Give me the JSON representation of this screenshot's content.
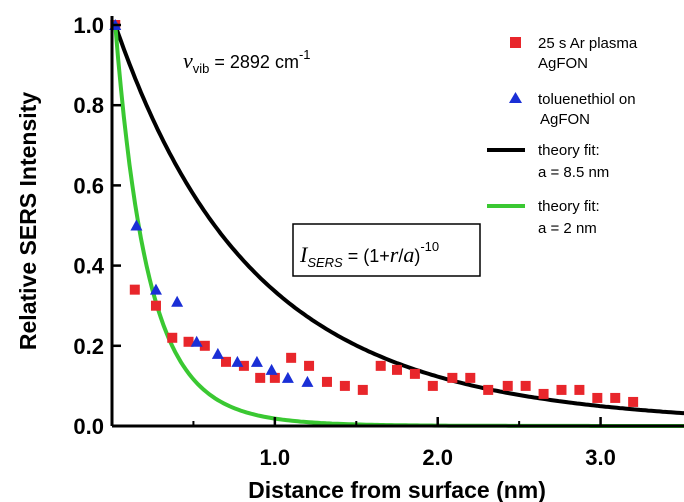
{
  "chart_data": {
    "type": "scatter",
    "xlabel": "Distance from surface (nm)",
    "ylabel": "Relative SERS Intensity",
    "xlim": [
      0.0,
      3.5
    ],
    "ylim": [
      0.0,
      1.0
    ],
    "x_ticks": [
      {
        "value": 1.0,
        "label": "1.0"
      },
      {
        "value": 2.0,
        "label": "2.0"
      },
      {
        "value": 3.0,
        "label": "3.0"
      }
    ],
    "y_ticks": [
      {
        "value": 0.0,
        "label": "0.0"
      },
      {
        "value": 0.2,
        "label": "0.2"
      },
      {
        "value": 0.4,
        "label": "0.4"
      },
      {
        "value": 0.6,
        "label": "0.6"
      },
      {
        "value": 0.8,
        "label": "0.8"
      },
      {
        "value": 1.0,
        "label": "1.0"
      }
    ],
    "grid": false,
    "legend_position": "top-right",
    "annotation_vib": {
      "symbol": "ν",
      "sub": "vib",
      "text": " = 2892 cm",
      "sup": "-1"
    },
    "annotation_eq": {
      "symbol": "I",
      "sub": "SERS",
      "text": " = (1+",
      "r": "r",
      "slash": "/",
      "a": "a",
      "close": ")",
      "sup": "-10"
    },
    "series": [
      {
        "name_line1": "25 s Ar plasma",
        "name_line2": "AgFON",
        "kind": "scatter",
        "marker": "square",
        "color": "#e8262b",
        "x": [
          0.02,
          0.14,
          0.27,
          0.37,
          0.47,
          0.57,
          0.7,
          0.81,
          0.91,
          1.0,
          1.1,
          1.21,
          1.32,
          1.43,
          1.54,
          1.65,
          1.75,
          1.86,
          1.97,
          2.09,
          2.2,
          2.31,
          2.43,
          2.54,
          2.65,
          2.76,
          2.87,
          2.98,
          3.09,
          3.2
        ],
        "y": [
          1.0,
          0.34,
          0.3,
          0.22,
          0.21,
          0.2,
          0.16,
          0.15,
          0.12,
          0.12,
          0.17,
          0.15,
          0.11,
          0.1,
          0.09,
          0.15,
          0.14,
          0.13,
          0.1,
          0.12,
          0.12,
          0.09,
          0.1,
          0.1,
          0.08,
          0.09,
          0.09,
          0.07,
          0.07,
          0.06
        ]
      },
      {
        "name_line1": "toluenethiol on",
        "name_line2": "AgFON",
        "kind": "scatter",
        "marker": "triangle",
        "color": "#1a2fd6",
        "x": [
          0.02,
          0.15,
          0.27,
          0.4,
          0.52,
          0.65,
          0.77,
          0.89,
          0.98,
          1.08,
          1.2
        ],
        "y": [
          1.0,
          0.5,
          0.34,
          0.31,
          0.21,
          0.18,
          0.16,
          0.16,
          0.14,
          0.12,
          0.11
        ]
      },
      {
        "name_line1": "theory fit:",
        "name_line2": "a = 8.5 nm",
        "kind": "line",
        "color": "#000000",
        "a": 8.5
      },
      {
        "name_line1": "theory fit:",
        "name_line2": "a = 2 nm",
        "kind": "line",
        "color": "#3ac832",
        "a": 2.0
      }
    ]
  }
}
